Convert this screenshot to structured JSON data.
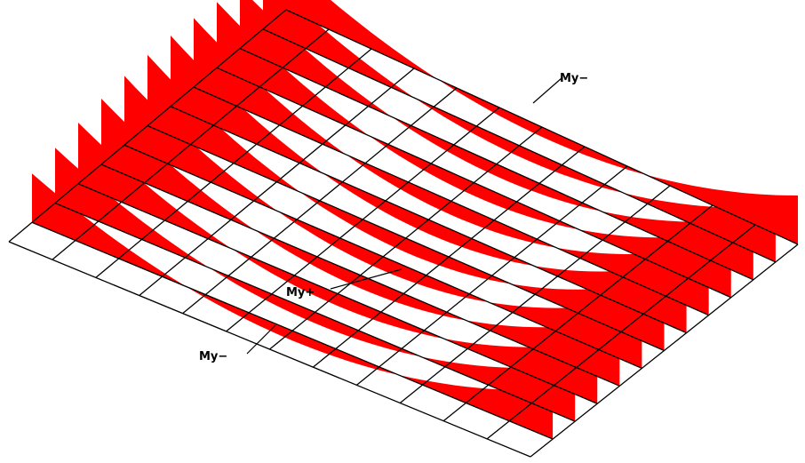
{
  "diagram": {
    "type": "slab-moment-diagram",
    "grid": {
      "cols": 12,
      "rows": 12,
      "line_color": "#000000"
    },
    "moment_color": "#ff0000",
    "strip_count": 12,
    "labels": [
      {
        "id": "my-neg-top",
        "text": "My−"
      },
      {
        "id": "my-pos",
        "text": "My+"
      },
      {
        "id": "my-neg-bottom",
        "text": "My−"
      }
    ]
  }
}
